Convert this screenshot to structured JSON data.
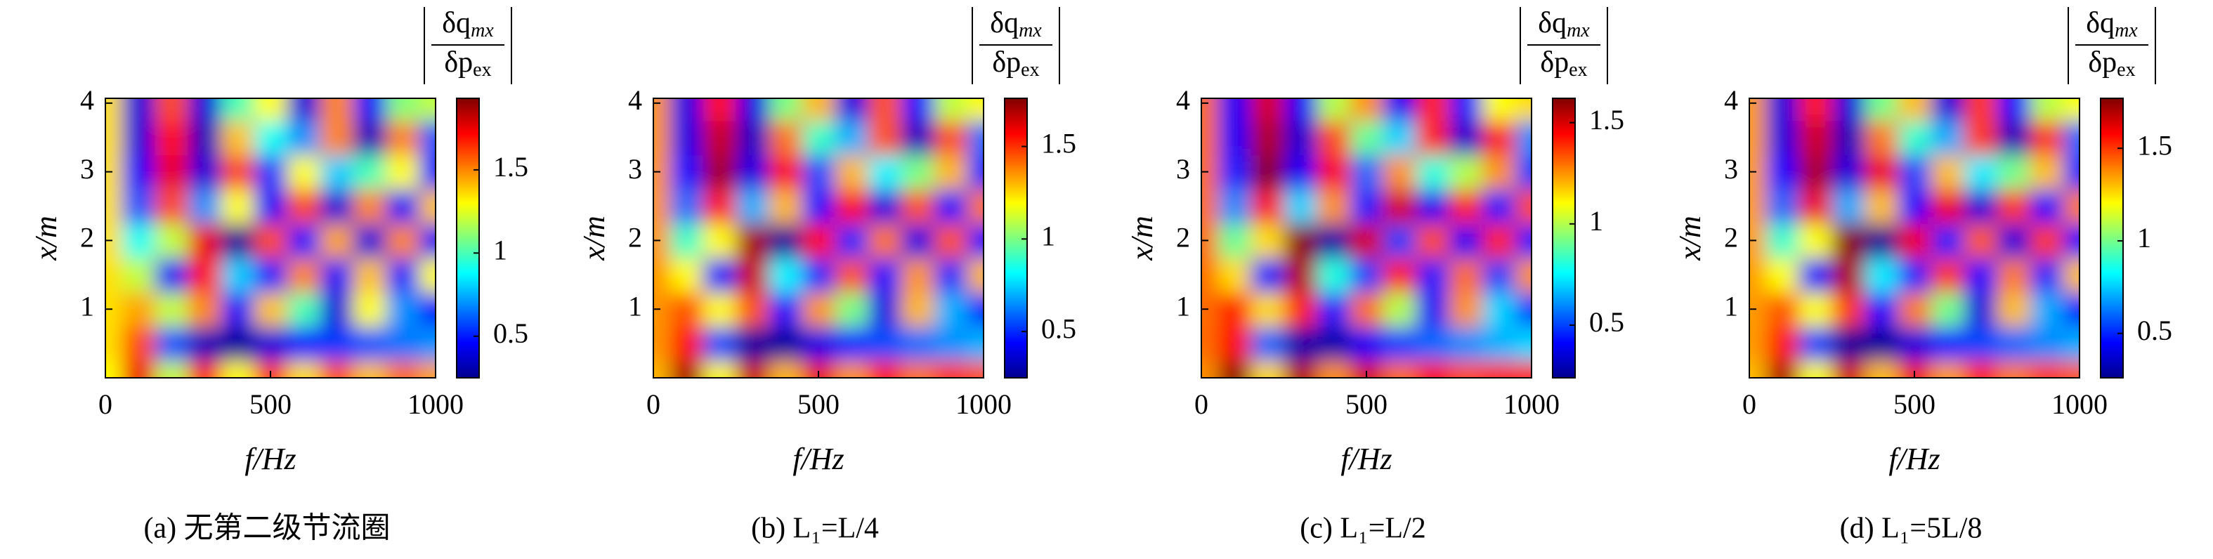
{
  "chart_data": [
    {
      "type": "heatmap",
      "caption": "(a) 无第二级节流圈",
      "xlabel": "f/Hz",
      "ylabel": "x/m",
      "colorbar_label": {
        "numerator": "δq",
        "numerator_sub": "mx",
        "denominator": "δp",
        "denominator_sub": "ex"
      },
      "x": [
        0,
        100,
        200,
        300,
        400,
        500,
        600,
        700,
        800,
        900,
        1000
      ],
      "y": [
        0,
        0.5,
        1,
        1.5,
        2,
        2.5,
        3,
        3.5,
        4
      ],
      "z": [
        [
          1.3,
          1.75,
          1.2,
          1.7,
          1.3,
          1.65,
          1.35,
          1.6,
          1.4,
          1.55,
          1.45
        ],
        [
          1.35,
          1.6,
          0.6,
          0.35,
          0.3,
          0.4,
          0.5,
          0.55,
          0.6,
          0.65,
          0.7
        ],
        [
          1.35,
          1.45,
          1.2,
          1.5,
          0.45,
          1.4,
          1.0,
          0.4,
          1.3,
          0.7,
          0.5
        ],
        [
          1.35,
          1.2,
          0.45,
          1.7,
          0.8,
          0.5,
          1.5,
          0.45,
          1.4,
          0.5,
          1.3
        ],
        [
          1.35,
          0.9,
          1.2,
          1.75,
          0.3,
          1.6,
          0.5,
          1.45,
          0.4,
          1.5,
          0.45
        ],
        [
          1.35,
          0.6,
          1.6,
          0.7,
          1.3,
          0.45,
          1.6,
          0.4,
          1.5,
          0.45,
          1.4
        ],
        [
          1.35,
          0.45,
          1.75,
          0.4,
          1.6,
          0.55,
          1.3,
          0.8,
          1.0,
          1.3,
          0.5
        ],
        [
          1.35,
          0.4,
          1.7,
          0.35,
          1.4,
          0.9,
          0.7,
          1.5,
          0.35,
          1.5,
          0.6
        ],
        [
          1.35,
          0.4,
          1.6,
          0.4,
          1.0,
          1.3,
          0.4,
          1.5,
          0.45,
          1.1,
          1.2
        ]
      ],
      "xlim": [
        0,
        1000
      ],
      "xticks": [
        0,
        500,
        1000
      ],
      "ylim": [
        0,
        4.07
      ],
      "yticks": [
        1,
        2,
        3,
        4
      ],
      "zlim": [
        0.25,
        1.93
      ],
      "zticks": [
        0.5,
        1.0,
        1.5
      ],
      "colormap": "jet"
    },
    {
      "type": "heatmap",
      "caption": "(b) L₁=L/4",
      "xlabel": "f/Hz",
      "ylabel": "x/m",
      "colorbar_label": {
        "numerator": "δq",
        "numerator_sub": "mx",
        "denominator": "δp",
        "denominator_sub": "ex"
      },
      "x": [
        0,
        100,
        200,
        300,
        400,
        500,
        600,
        700,
        800,
        900,
        1000
      ],
      "y": [
        0,
        0.5,
        1,
        1.5,
        2,
        2.5,
        3,
        3.5,
        4
      ],
      "z": [
        [
          1.3,
          1.7,
          1.2,
          1.65,
          1.3,
          1.6,
          1.35,
          1.55,
          1.4,
          1.5,
          1.45
        ],
        [
          1.35,
          1.55,
          0.55,
          0.3,
          0.3,
          0.4,
          0.5,
          0.55,
          0.6,
          0.65,
          0.7
        ],
        [
          1.35,
          1.45,
          1.2,
          1.45,
          0.45,
          1.35,
          1.0,
          0.4,
          1.3,
          0.7,
          0.5
        ],
        [
          1.35,
          1.2,
          0.45,
          1.65,
          0.8,
          0.5,
          1.45,
          0.45,
          1.35,
          0.5,
          1.3
        ],
        [
          1.35,
          0.9,
          1.2,
          1.7,
          0.3,
          1.55,
          0.5,
          1.4,
          0.4,
          1.45,
          0.45
        ],
        [
          1.35,
          0.6,
          1.55,
          0.7,
          1.3,
          0.45,
          1.55,
          0.4,
          1.45,
          0.45,
          1.4
        ],
        [
          1.35,
          0.45,
          1.7,
          0.4,
          1.55,
          0.55,
          1.3,
          0.8,
          1.0,
          1.3,
          0.5
        ],
        [
          1.35,
          0.4,
          1.65,
          0.35,
          1.4,
          0.9,
          0.7,
          1.45,
          0.35,
          1.45,
          0.6
        ],
        [
          1.35,
          0.4,
          1.55,
          0.4,
          1.0,
          1.3,
          0.4,
          1.45,
          0.45,
          1.1,
          1.2
        ]
      ],
      "xlim": [
        0,
        1000
      ],
      "xticks": [
        0,
        500,
        1000
      ],
      "ylim": [
        0,
        4.07
      ],
      "yticks": [
        1,
        2,
        3,
        4
      ],
      "zlim": [
        0.25,
        1.76
      ],
      "zticks": [
        0.5,
        1.0,
        1.5
      ],
      "colormap": "jet"
    },
    {
      "type": "heatmap",
      "caption": "(c) L₁=L/2",
      "xlabel": "f/Hz",
      "ylabel": "x/m",
      "colorbar_label": {
        "numerator": "δq",
        "numerator_sub": "mx",
        "denominator": "δp",
        "denominator_sub": "ex"
      },
      "x": [
        0,
        100,
        200,
        300,
        400,
        500,
        600,
        700,
        800,
        900,
        1000
      ],
      "y": [
        0,
        0.5,
        1,
        1.5,
        2,
        2.5,
        3,
        3.5,
        4
      ],
      "z": [
        [
          1.25,
          1.6,
          1.15,
          1.55,
          1.25,
          1.5,
          1.3,
          1.45,
          1.35,
          1.4,
          1.4
        ],
        [
          1.3,
          1.45,
          0.55,
          0.3,
          0.3,
          0.4,
          0.5,
          0.55,
          0.6,
          0.65,
          0.7
        ],
        [
          1.3,
          1.4,
          1.15,
          1.4,
          0.45,
          1.3,
          1.0,
          0.4,
          1.25,
          0.7,
          0.5
        ],
        [
          1.3,
          1.15,
          0.45,
          1.55,
          0.8,
          0.5,
          1.4,
          0.45,
          1.3,
          0.5,
          1.25
        ],
        [
          1.3,
          0.9,
          1.15,
          1.6,
          0.3,
          1.5,
          0.5,
          1.35,
          0.4,
          1.4,
          0.45
        ],
        [
          1.3,
          0.6,
          1.45,
          0.7,
          1.25,
          0.45,
          1.5,
          0.4,
          1.4,
          0.45,
          1.35
        ],
        [
          1.3,
          0.45,
          1.6,
          0.4,
          1.45,
          0.55,
          1.25,
          0.8,
          1.0,
          1.25,
          0.5
        ],
        [
          1.3,
          0.4,
          1.55,
          0.35,
          1.35,
          0.9,
          0.7,
          1.4,
          0.35,
          1.4,
          0.6
        ],
        [
          1.3,
          0.4,
          1.5,
          0.4,
          1.0,
          1.25,
          0.4,
          1.4,
          0.45,
          1.1,
          1.15
        ]
      ],
      "xlim": [
        0,
        1000
      ],
      "xticks": [
        0,
        500,
        1000
      ],
      "ylim": [
        0,
        4.07
      ],
      "yticks": [
        1,
        2,
        3,
        4
      ],
      "zlim": [
        0.24,
        1.62
      ],
      "zticks": [
        0.5,
        1.0,
        1.5
      ],
      "colormap": "jet"
    },
    {
      "type": "heatmap",
      "caption": "(d) L₁=5L/8",
      "xlabel": "f/Hz",
      "ylabel": "x/m",
      "colorbar_label": {
        "numerator": "δq",
        "numerator_sub": "mx",
        "denominator": "δp",
        "denominator_sub": "ex"
      },
      "x": [
        0,
        100,
        200,
        300,
        400,
        500,
        600,
        700,
        800,
        900,
        1000
      ],
      "y": [
        0,
        0.5,
        1,
        1.5,
        2,
        2.5,
        3,
        3.5,
        4
      ],
      "z": [
        [
          1.3,
          1.7,
          1.2,
          1.65,
          1.3,
          1.6,
          1.35,
          1.55,
          1.4,
          1.5,
          1.45
        ],
        [
          1.35,
          1.55,
          0.55,
          0.3,
          0.3,
          0.4,
          0.5,
          0.55,
          0.6,
          0.65,
          0.7
        ],
        [
          1.35,
          1.45,
          1.2,
          1.5,
          0.45,
          1.4,
          1.0,
          0.4,
          1.3,
          0.7,
          0.5
        ],
        [
          1.35,
          1.2,
          0.45,
          1.7,
          0.8,
          0.5,
          1.5,
          0.45,
          1.4,
          0.5,
          1.3
        ],
        [
          1.35,
          0.9,
          1.2,
          1.75,
          0.3,
          1.6,
          0.5,
          1.45,
          0.4,
          1.5,
          0.45
        ],
        [
          1.35,
          0.6,
          1.6,
          0.7,
          1.3,
          0.45,
          1.6,
          0.4,
          1.5,
          0.45,
          1.4
        ],
        [
          1.35,
          0.45,
          1.7,
          0.4,
          1.6,
          0.55,
          1.3,
          0.8,
          1.0,
          1.3,
          0.5
        ],
        [
          1.35,
          0.4,
          1.65,
          0.35,
          1.4,
          0.9,
          0.7,
          1.5,
          0.35,
          1.5,
          0.6
        ],
        [
          1.35,
          0.4,
          1.55,
          0.4,
          1.0,
          1.3,
          0.4,
          1.5,
          0.45,
          1.1,
          1.2
        ]
      ],
      "xlim": [
        0,
        1000
      ],
      "xticks": [
        0,
        500,
        1000
      ],
      "ylim": [
        0,
        4.07
      ],
      "yticks": [
        1,
        2,
        3,
        4
      ],
      "zlim": [
        0.26,
        1.77
      ],
      "zticks": [
        0.5,
        1.0,
        1.5
      ],
      "colormap": "jet"
    }
  ]
}
